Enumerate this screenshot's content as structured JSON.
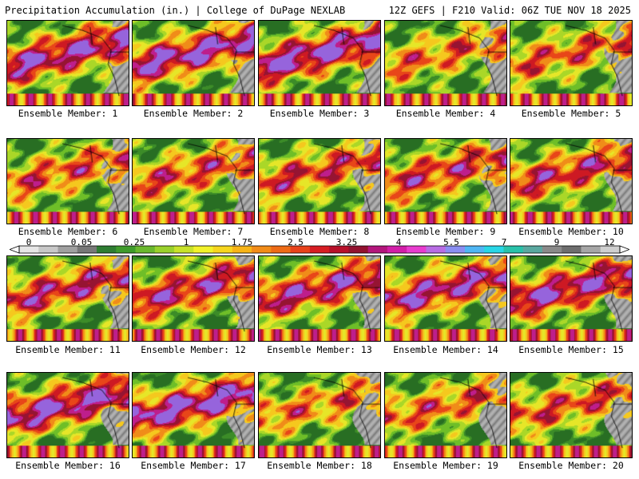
{
  "header": {
    "left": "Precipitation Accumulation (in.) | College of DuPage NEXLAB",
    "right": "12Z GEFS | F210 Valid: 06Z TUE NOV 18 2025"
  },
  "colorbar": {
    "tick_labels": [
      "0",
      "0.05",
      "0.25",
      "1",
      "1.75",
      "2.5",
      "3.25",
      "4",
      "5.5",
      "7",
      "9",
      "12"
    ],
    "colors": [
      "#e6e6e6",
      "#c8c8c8",
      "#a0a0a0",
      "#787878",
      "#2e7d32",
      "#3f9b2b",
      "#6ab82e",
      "#9ad12c",
      "#c8e22a",
      "#f2f22a",
      "#f7d61e",
      "#f7b417",
      "#f28c18",
      "#ee6b16",
      "#e8421a",
      "#d71d23",
      "#b8102a",
      "#92122f",
      "#b3167c",
      "#d21ea8",
      "#e83ccf",
      "#b86de4",
      "#8a8ef2",
      "#4fb6f4",
      "#28d6e6",
      "#29c2aa",
      "#5aa8a0",
      "#8a8a8a",
      "#6e6e6e",
      "#a6a6a6",
      "#cfcfcf"
    ]
  },
  "panels": [
    {
      "caption": "Ensemble Member: 1"
    },
    {
      "caption": "Ensemble Member: 2"
    },
    {
      "caption": "Ensemble Member: 3"
    },
    {
      "caption": "Ensemble Member: 4"
    },
    {
      "caption": "Ensemble Member: 5"
    },
    {
      "caption": "Ensemble Member: 6"
    },
    {
      "caption": "Ensemble Member: 7"
    },
    {
      "caption": "Ensemble Member: 8"
    },
    {
      "caption": "Ensemble Member: 9"
    },
    {
      "caption": "Ensemble Member: 10"
    },
    {
      "caption": "Ensemble Member: 11"
    },
    {
      "caption": "Ensemble Member: 12"
    },
    {
      "caption": "Ensemble Member: 13"
    },
    {
      "caption": "Ensemble Member: 14"
    },
    {
      "caption": "Ensemble Member: 15"
    },
    {
      "caption": "Ensemble Member: 16"
    },
    {
      "caption": "Ensemble Member: 17"
    },
    {
      "caption": "Ensemble Member: 18"
    },
    {
      "caption": "Ensemble Member: 19"
    },
    {
      "caption": "Ensemble Member: 20"
    }
  ]
}
